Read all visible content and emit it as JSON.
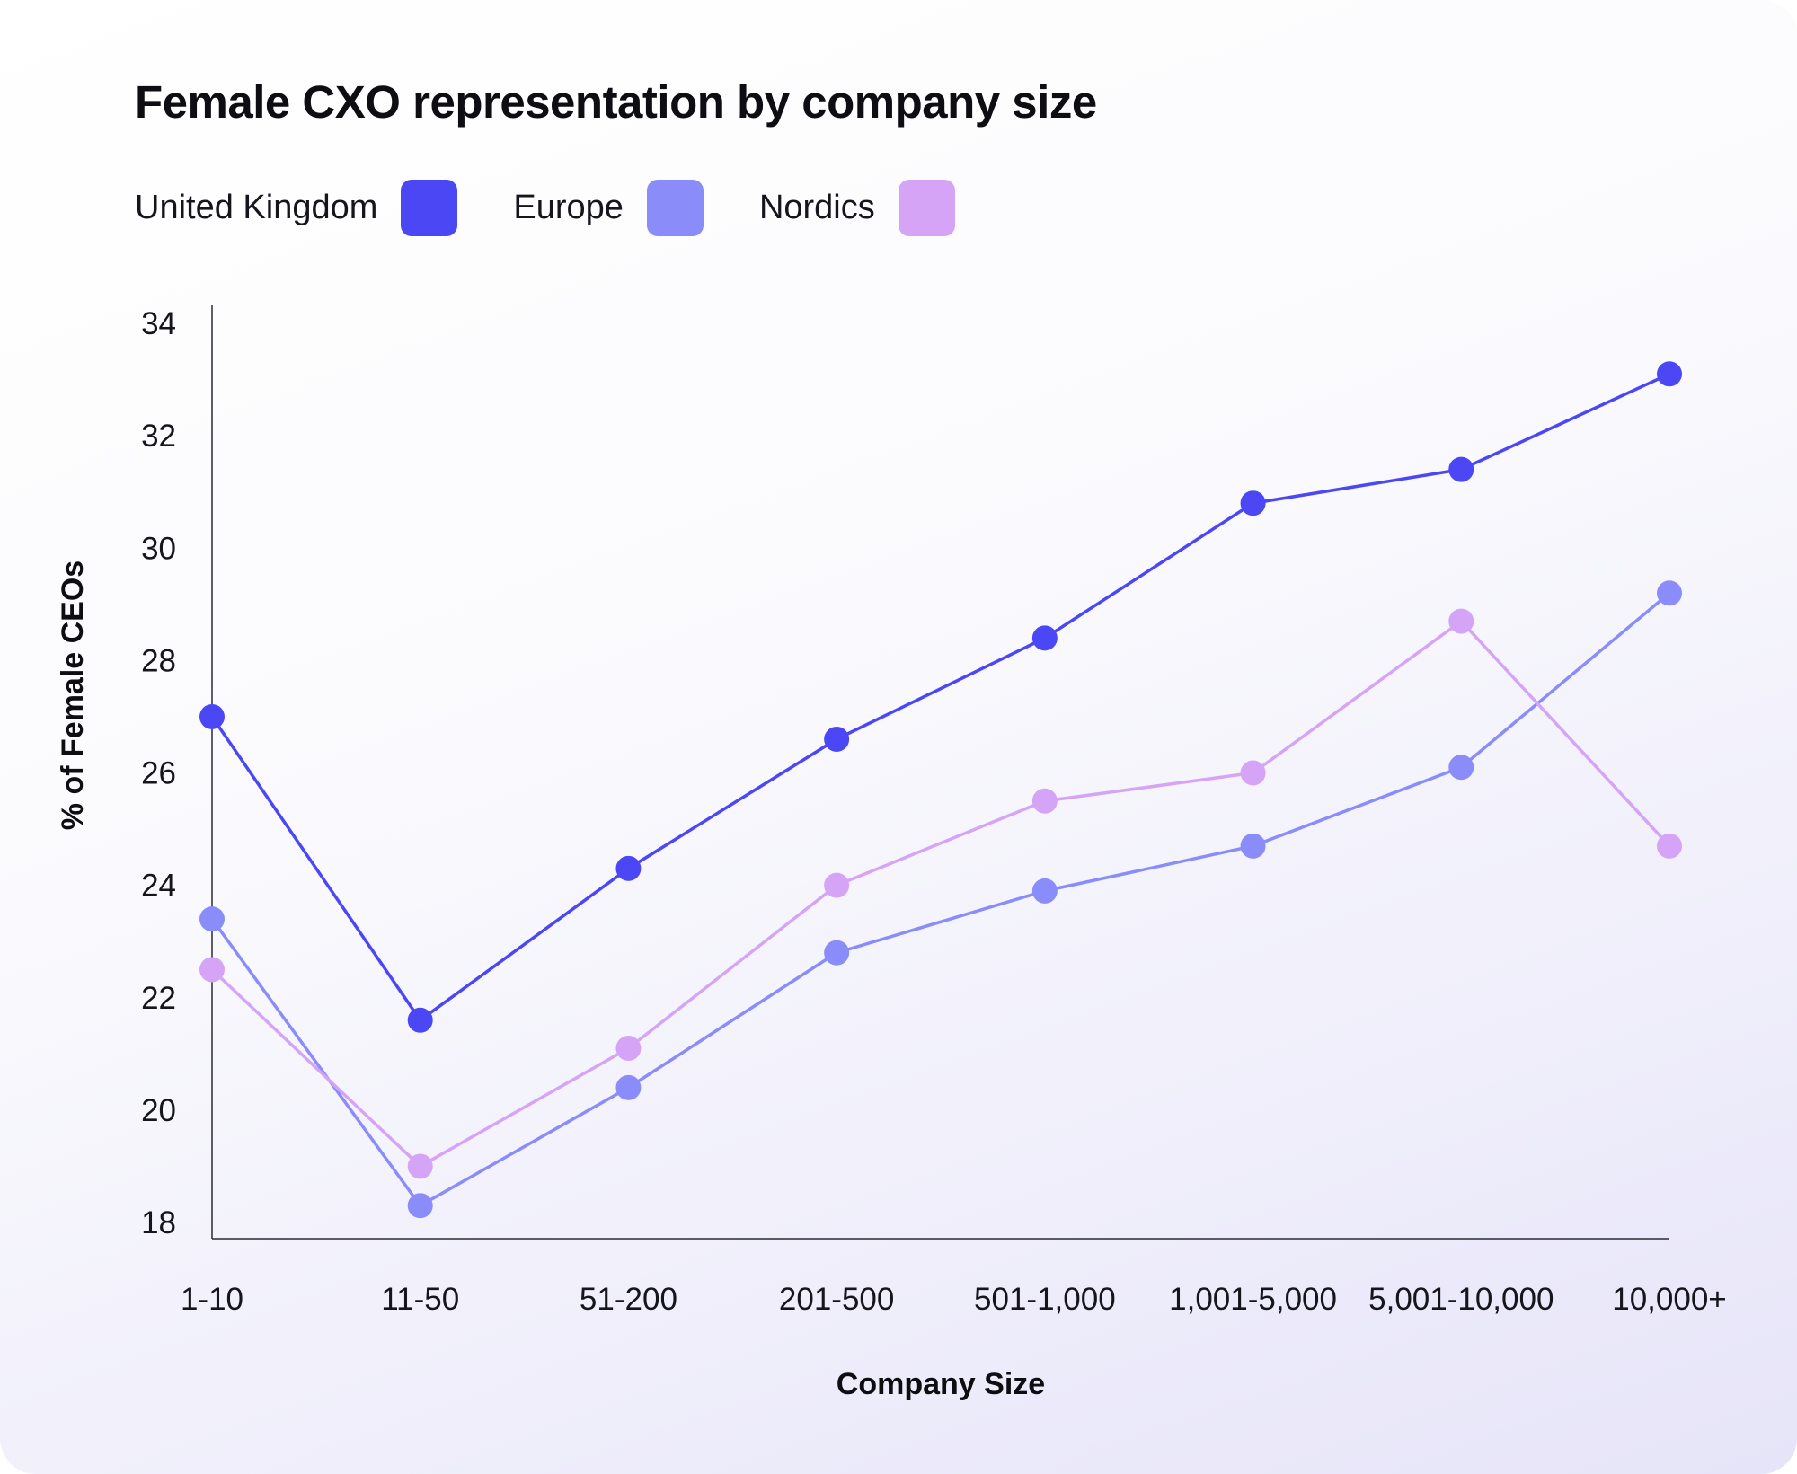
{
  "chart_data": {
    "type": "line",
    "title": "Female CXO representation by company size",
    "xlabel": "Company Size",
    "ylabel": "% of Female CEOs",
    "categories": [
      "1-10",
      "11-50",
      "51-200",
      "201-500",
      "501-1,000",
      "1,001-5,000",
      "5,001-10,000",
      "10,000+"
    ],
    "yticks": [
      18,
      20,
      22,
      24,
      26,
      28,
      30,
      32,
      34
    ],
    "ylim": [
      18,
      34
    ],
    "grid": false,
    "legend_position": "top-left",
    "series": [
      {
        "name": "United Kingdom",
        "color": "#4b47f5",
        "values": [
          27.0,
          21.6,
          24.3,
          26.6,
          28.4,
          30.8,
          31.4,
          33.1
        ]
      },
      {
        "name": "Europe",
        "color": "#8a8cfa",
        "values": [
          23.4,
          18.3,
          20.4,
          22.8,
          23.9,
          24.7,
          26.1,
          29.2
        ]
      },
      {
        "name": "Nordics",
        "color": "#d5a4f7",
        "values": [
          22.5,
          19.0,
          21.1,
          24.0,
          25.5,
          26.0,
          28.7,
          24.7
        ]
      }
    ]
  }
}
